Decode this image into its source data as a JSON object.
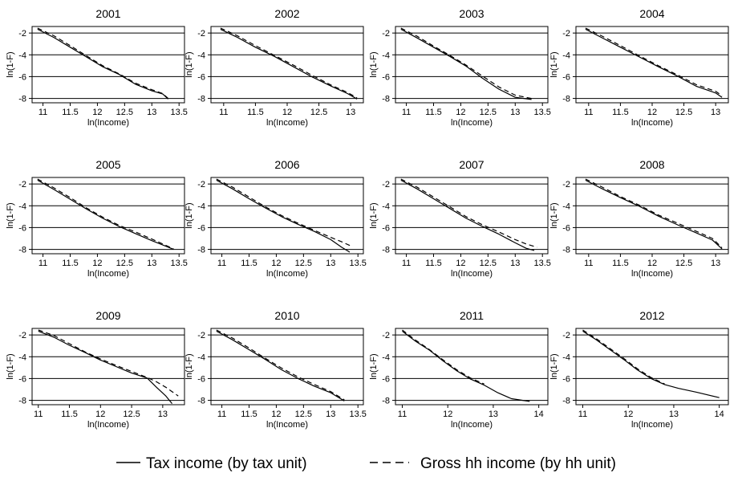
{
  "figure": {
    "legend": [
      {
        "label": "Tax income (by tax unit)",
        "style": "solid",
        "color": "#000000"
      },
      {
        "label": "Gross hh income (by hh unit)",
        "style": "dashed",
        "color": "#000000"
      }
    ]
  },
  "chart_data": [
    {
      "type": "line",
      "title": "2001",
      "xlabel": "ln(Income)",
      "ylabel": "ln(1-F)",
      "xlim": [
        10.8,
        13.6
      ],
      "ylim": [
        -8.4,
        -1.4
      ],
      "xticks": [
        11,
        11.5,
        12,
        12.5,
        13,
        13.5
      ],
      "xtick_labels": [
        "11",
        "11.5",
        "12",
        "12.5",
        "13",
        "13.5"
      ],
      "yticks": [
        -2,
        -4,
        -6,
        -8
      ],
      "ytick_labels": [
        "-2",
        "-4",
        "-6",
        "-8"
      ],
      "grid": "horizontal",
      "series": [
        {
          "name": "Tax income (by tax unit)",
          "style": "solid",
          "x": [
            10.9,
            11.2,
            11.5,
            11.8,
            12.1,
            12.4,
            12.7,
            13.0,
            13.2,
            13.3
          ],
          "y": [
            -1.65,
            -2.4,
            -3.3,
            -4.2,
            -5.1,
            -5.8,
            -6.7,
            -7.3,
            -7.6,
            -8.05
          ]
        },
        {
          "name": "Gross hh income (by hh unit)",
          "style": "dashed",
          "x": [
            10.9,
            11.2,
            11.5,
            11.8,
            12.1,
            12.4,
            12.7,
            13.0,
            13.2,
            13.3
          ],
          "y": [
            -1.55,
            -2.25,
            -3.15,
            -4.1,
            -5.0,
            -5.75,
            -6.6,
            -7.2,
            -7.55,
            -8.0
          ]
        }
      ]
    },
    {
      "type": "line",
      "title": "2002",
      "xlabel": "ln(Income)",
      "ylabel": "ln(1-F)",
      "xlim": [
        10.8,
        13.2
      ],
      "ylim": [
        -8.4,
        -1.4
      ],
      "xticks": [
        11,
        11.5,
        12,
        12.5,
        13
      ],
      "xtick_labels": [
        "11",
        "11.5",
        "12",
        "12.5",
        "13"
      ],
      "yticks": [
        -2,
        -4,
        -6,
        -8
      ],
      "ytick_labels": [
        "-2",
        "-4",
        "-6",
        "-8"
      ],
      "grid": "horizontal",
      "series": [
        {
          "name": "Tax income (by tax unit)",
          "style": "solid",
          "x": [
            10.95,
            11.2,
            11.5,
            11.8,
            12.1,
            12.4,
            12.7,
            12.95,
            13.1
          ],
          "y": [
            -1.65,
            -2.35,
            -3.3,
            -4.15,
            -5.1,
            -6.05,
            -6.9,
            -7.55,
            -8.05
          ]
        },
        {
          "name": "Gross hh income (by hh unit)",
          "style": "dashed",
          "x": [
            10.95,
            11.2,
            11.5,
            11.8,
            12.1,
            12.4,
            12.7,
            12.95,
            13.1
          ],
          "y": [
            -1.55,
            -2.2,
            -3.15,
            -4.05,
            -4.95,
            -5.9,
            -6.8,
            -7.45,
            -7.95
          ]
        }
      ]
    },
    {
      "type": "line",
      "title": "2003",
      "xlabel": "ln(Income)",
      "ylabel": "ln(1-F)",
      "xlim": [
        10.8,
        13.6
      ],
      "ylim": [
        -8.4,
        -1.4
      ],
      "xticks": [
        11,
        11.5,
        12,
        12.5,
        13,
        13.5
      ],
      "xtick_labels": [
        "11",
        "11.5",
        "12",
        "12.5",
        "13",
        "13.5"
      ],
      "yticks": [
        -2,
        -4,
        -6,
        -8
      ],
      "ytick_labels": [
        "-2",
        "-4",
        "-6",
        "-8"
      ],
      "grid": "horizontal",
      "series": [
        {
          "name": "Tax income (by tax unit)",
          "style": "solid",
          "x": [
            10.9,
            11.2,
            11.5,
            11.8,
            12.1,
            12.4,
            12.7,
            13.0,
            13.3
          ],
          "y": [
            -1.65,
            -2.45,
            -3.3,
            -4.15,
            -5.05,
            -6.15,
            -7.15,
            -7.9,
            -8.1
          ]
        },
        {
          "name": "Gross hh income (by hh unit)",
          "style": "dashed",
          "x": [
            10.9,
            11.2,
            11.5,
            11.8,
            12.1,
            12.4,
            12.7,
            13.0,
            13.3
          ],
          "y": [
            -1.55,
            -2.3,
            -3.2,
            -4.05,
            -4.95,
            -5.95,
            -6.95,
            -7.7,
            -8.0
          ]
        }
      ]
    },
    {
      "type": "line",
      "title": "2004",
      "xlabel": "ln(Income)",
      "ylabel": "ln(1-F)",
      "xlim": [
        10.8,
        13.2
      ],
      "ylim": [
        -8.4,
        -1.4
      ],
      "xticks": [
        11,
        11.5,
        12,
        12.5,
        13
      ],
      "xtick_labels": [
        "11",
        "11.5",
        "12",
        "12.5",
        "13"
      ],
      "yticks": [
        -2,
        -4,
        -6,
        -8
      ],
      "ytick_labels": [
        "-2",
        "-4",
        "-6",
        "-8"
      ],
      "grid": "horizontal",
      "series": [
        {
          "name": "Tax income (by tax unit)",
          "style": "solid",
          "x": [
            10.95,
            11.2,
            11.5,
            11.8,
            12.1,
            12.4,
            12.7,
            13.0,
            13.1
          ],
          "y": [
            -1.65,
            -2.4,
            -3.3,
            -4.2,
            -5.1,
            -5.95,
            -6.9,
            -7.5,
            -7.9
          ]
        },
        {
          "name": "Gross hh income (by hh unit)",
          "style": "dashed",
          "x": [
            10.95,
            11.2,
            11.5,
            11.8,
            12.1,
            12.4,
            12.7,
            13.0,
            13.1
          ],
          "y": [
            -1.55,
            -2.25,
            -3.15,
            -4.1,
            -5.0,
            -5.85,
            -6.75,
            -7.35,
            -7.75
          ]
        }
      ]
    },
    {
      "type": "line",
      "title": "2005",
      "xlabel": "ln(Income)",
      "ylabel": "ln(1-F)",
      "xlim": [
        10.8,
        13.6
      ],
      "ylim": [
        -8.4,
        -1.4
      ],
      "xticks": [
        11,
        11.5,
        12,
        12.5,
        13,
        13.5
      ],
      "xtick_labels": [
        "11",
        "11.5",
        "12",
        "12.5",
        "13",
        "13.5"
      ],
      "yticks": [
        -2,
        -4,
        -6,
        -8
      ],
      "ytick_labels": [
        "-2",
        "-4",
        "-6",
        "-8"
      ],
      "grid": "horizontal",
      "series": [
        {
          "name": "Tax income (by tax unit)",
          "style": "solid",
          "x": [
            10.9,
            11.2,
            11.5,
            11.8,
            12.1,
            12.4,
            12.7,
            13.0,
            13.2,
            13.4
          ],
          "y": [
            -1.65,
            -2.5,
            -3.4,
            -4.3,
            -5.15,
            -5.9,
            -6.55,
            -7.2,
            -7.6,
            -8.0
          ]
        },
        {
          "name": "Gross hh income (by hh unit)",
          "style": "dashed",
          "x": [
            10.9,
            11.2,
            11.5,
            11.8,
            12.1,
            12.4,
            12.7,
            13.0,
            13.2,
            13.4
          ],
          "y": [
            -1.55,
            -2.35,
            -3.25,
            -4.2,
            -5.05,
            -5.8,
            -6.4,
            -7.05,
            -7.5,
            -7.95
          ]
        }
      ]
    },
    {
      "type": "line",
      "title": "2006",
      "xlabel": "ln(Income)",
      "ylabel": "ln(1-F)",
      "xlim": [
        10.8,
        13.6
      ],
      "ylim": [
        -8.4,
        -1.4
      ],
      "xticks": [
        11,
        11.5,
        12,
        12.5,
        13,
        13.5
      ],
      "xtick_labels": [
        "11",
        "11.5",
        "12",
        "12.5",
        "13",
        "13.5"
      ],
      "yticks": [
        -2,
        -4,
        -6,
        -8
      ],
      "ytick_labels": [
        "-2",
        "-4",
        "-6",
        "-8"
      ],
      "grid": "horizontal",
      "series": [
        {
          "name": "Tax income (by tax unit)",
          "style": "solid",
          "x": [
            10.9,
            11.2,
            11.5,
            11.8,
            12.1,
            12.4,
            12.7,
            13.0,
            13.2,
            13.35
          ],
          "y": [
            -1.65,
            -2.45,
            -3.35,
            -4.2,
            -5.0,
            -5.7,
            -6.35,
            -7.1,
            -7.8,
            -8.25
          ]
        },
        {
          "name": "Gross hh income (by hh unit)",
          "style": "dashed",
          "x": [
            10.9,
            11.2,
            11.5,
            11.8,
            12.1,
            12.4,
            12.7,
            13.0,
            13.2,
            13.4
          ],
          "y": [
            -1.55,
            -2.3,
            -3.2,
            -4.1,
            -4.9,
            -5.6,
            -6.25,
            -6.9,
            -7.3,
            -7.75
          ]
        }
      ]
    },
    {
      "type": "line",
      "title": "2007",
      "xlabel": "ln(Income)",
      "ylabel": "ln(1-F)",
      "xlim": [
        10.8,
        13.6
      ],
      "ylim": [
        -8.4,
        -1.4
      ],
      "xticks": [
        11,
        11.5,
        12,
        12.5,
        13,
        13.5
      ],
      "xtick_labels": [
        "11",
        "11.5",
        "12",
        "12.5",
        "13",
        "13.5"
      ],
      "yticks": [
        -2,
        -4,
        -6,
        -8
      ],
      "ytick_labels": [
        "-2",
        "-4",
        "-6",
        "-8"
      ],
      "grid": "horizontal",
      "series": [
        {
          "name": "Tax income (by tax unit)",
          "style": "solid",
          "x": [
            10.9,
            11.2,
            11.5,
            11.8,
            12.1,
            12.4,
            12.7,
            13.0,
            13.2,
            13.35
          ],
          "y": [
            -1.65,
            -2.45,
            -3.35,
            -4.25,
            -5.15,
            -5.9,
            -6.6,
            -7.4,
            -7.9,
            -8.1
          ]
        },
        {
          "name": "Gross hh income (by hh unit)",
          "style": "dashed",
          "x": [
            10.9,
            11.2,
            11.5,
            11.8,
            12.1,
            12.4,
            12.7,
            13.0,
            13.2,
            13.4
          ],
          "y": [
            -1.55,
            -2.3,
            -3.2,
            -4.1,
            -5.0,
            -5.75,
            -6.4,
            -7.1,
            -7.5,
            -7.8
          ]
        }
      ]
    },
    {
      "type": "line",
      "title": "2008",
      "xlabel": "ln(Income)",
      "ylabel": "ln(1-F)",
      "xlim": [
        10.8,
        13.2
      ],
      "ylim": [
        -8.4,
        -1.4
      ],
      "xticks": [
        11,
        11.5,
        12,
        12.5,
        13
      ],
      "xtick_labels": [
        "11",
        "11.5",
        "12",
        "12.5",
        "13"
      ],
      "yticks": [
        -2,
        -4,
        -6,
        -8
      ],
      "ytick_labels": [
        "-2",
        "-4",
        "-6",
        "-8"
      ],
      "grid": "horizontal",
      "series": [
        {
          "name": "Tax income (by tax unit)",
          "style": "solid",
          "x": [
            10.95,
            11.2,
            11.5,
            11.8,
            12.1,
            12.4,
            12.7,
            12.95,
            13.1
          ],
          "y": [
            -1.65,
            -2.4,
            -3.25,
            -4.05,
            -4.95,
            -5.75,
            -6.5,
            -7.15,
            -7.95
          ]
        },
        {
          "name": "Gross hh income (by hh unit)",
          "style": "dashed",
          "x": [
            10.95,
            11.2,
            11.5,
            11.8,
            12.1,
            12.4,
            12.7,
            12.95,
            13.1
          ],
          "y": [
            -1.55,
            -2.25,
            -3.15,
            -3.95,
            -4.85,
            -5.6,
            -6.35,
            -7.0,
            -7.85
          ]
        }
      ]
    },
    {
      "type": "line",
      "title": "2009",
      "xlabel": "ln(Income)",
      "ylabel": "ln(1-F)",
      "xlim": [
        10.9,
        13.35
      ],
      "ylim": [
        -8.4,
        -1.4
      ],
      "xticks": [
        11,
        11.5,
        12,
        12.5,
        13
      ],
      "xtick_labels": [
        "11",
        "11.5",
        "12",
        "12.5",
        "13"
      ],
      "yticks": [
        -2,
        -4,
        -6,
        -8
      ],
      "ytick_labels": [
        "-2",
        "-4",
        "-6",
        "-8"
      ],
      "grid": "horizontal",
      "series": [
        {
          "name": "Tax income (by tax unit)",
          "style": "solid",
          "x": [
            11.0,
            11.25,
            11.5,
            11.75,
            12.0,
            12.25,
            12.5,
            12.75,
            12.9,
            13.05,
            13.15
          ],
          "y": [
            -1.65,
            -2.2,
            -2.95,
            -3.6,
            -4.3,
            -4.9,
            -5.5,
            -5.95,
            -6.8,
            -7.6,
            -8.3
          ]
        },
        {
          "name": "Gross hh income (by hh unit)",
          "style": "dashed",
          "x": [
            11.0,
            11.25,
            11.5,
            11.75,
            12.0,
            12.25,
            12.5,
            12.75,
            12.9,
            13.05,
            13.25
          ],
          "y": [
            -1.55,
            -2.05,
            -2.8,
            -3.55,
            -4.2,
            -4.8,
            -5.35,
            -5.9,
            -6.3,
            -6.8,
            -7.6
          ]
        }
      ]
    },
    {
      "type": "line",
      "title": "2010",
      "xlabel": "ln(Income)",
      "ylabel": "ln(1-F)",
      "xlim": [
        10.8,
        13.6
      ],
      "ylim": [
        -8.4,
        -1.4
      ],
      "xticks": [
        11,
        11.5,
        12,
        12.5,
        13,
        13.5
      ],
      "xtick_labels": [
        "11",
        "11.5",
        "12",
        "12.5",
        "13",
        "13.5"
      ],
      "yticks": [
        -2,
        -4,
        -6,
        -8
      ],
      "ytick_labels": [
        "-2",
        "-4",
        "-6",
        "-8"
      ],
      "grid": "horizontal",
      "series": [
        {
          "name": "Tax income (by tax unit)",
          "style": "solid",
          "x": [
            10.9,
            11.2,
            11.5,
            11.8,
            12.1,
            12.4,
            12.7,
            13.0,
            13.25
          ],
          "y": [
            -1.65,
            -2.45,
            -3.35,
            -4.25,
            -5.2,
            -6.0,
            -6.7,
            -7.3,
            -8.05
          ]
        },
        {
          "name": "Gross hh income (by hh unit)",
          "style": "dashed",
          "x": [
            10.9,
            11.2,
            11.5,
            11.8,
            12.1,
            12.4,
            12.7,
            13.0,
            13.25
          ],
          "y": [
            -1.55,
            -2.3,
            -3.2,
            -4.15,
            -5.05,
            -5.85,
            -6.55,
            -7.2,
            -7.95
          ]
        }
      ]
    },
    {
      "type": "line",
      "title": "2011",
      "xlabel": "ln(Income)",
      "ylabel": "ln(1-F)",
      "xlim": [
        10.85,
        14.2
      ],
      "ylim": [
        -8.4,
        -1.4
      ],
      "xticks": [
        11,
        12,
        13,
        14
      ],
      "xtick_labels": [
        "11",
        "12",
        "13",
        "14"
      ],
      "yticks": [
        -2,
        -4,
        -6,
        -8
      ],
      "ytick_labels": [
        "-2",
        "-4",
        "-6",
        "-8"
      ],
      "grid": "horizontal",
      "series": [
        {
          "name": "Tax income (by tax unit)",
          "style": "solid",
          "x": [
            11.0,
            11.3,
            11.6,
            11.9,
            12.2,
            12.5,
            12.8,
            13.1,
            13.4,
            13.8
          ],
          "y": [
            -1.65,
            -2.6,
            -3.4,
            -4.4,
            -5.3,
            -6.05,
            -6.6,
            -7.3,
            -7.85,
            -8.1
          ]
        },
        {
          "name": "Gross hh income (by hh unit)",
          "style": "dashed",
          "x": [
            11.0,
            11.3,
            11.6,
            11.9,
            12.2,
            12.5,
            12.8
          ],
          "y": [
            -1.55,
            -2.5,
            -3.35,
            -4.3,
            -5.2,
            -5.95,
            -6.5
          ]
        }
      ]
    },
    {
      "type": "line",
      "title": "2012",
      "xlabel": "ln(Income)",
      "ylabel": "ln(1-F)",
      "xlim": [
        10.85,
        14.2
      ],
      "ylim": [
        -8.4,
        -1.4
      ],
      "xticks": [
        11,
        12,
        13,
        14
      ],
      "xtick_labels": [
        "11",
        "12",
        "13",
        "14"
      ],
      "yticks": [
        -2,
        -4,
        -6,
        -8
      ],
      "ytick_labels": [
        "-2",
        "-4",
        "-6",
        "-8"
      ],
      "grid": "horizontal",
      "series": [
        {
          "name": "Tax income (by tax unit)",
          "style": "solid",
          "x": [
            11.0,
            11.3,
            11.6,
            11.9,
            12.2,
            12.5,
            12.8,
            13.1,
            13.5,
            14.0
          ],
          "y": [
            -1.65,
            -2.45,
            -3.35,
            -4.25,
            -5.2,
            -6.0,
            -6.55,
            -6.9,
            -7.25,
            -7.75
          ]
        },
        {
          "name": "Gross hh income (by hh unit)",
          "style": "dashed",
          "x": [
            11.0,
            11.3,
            11.6,
            11.9,
            12.2,
            12.5,
            12.8
          ],
          "y": [
            -1.55,
            -2.35,
            -3.25,
            -4.15,
            -5.1,
            -5.9,
            -6.5
          ]
        }
      ]
    }
  ]
}
